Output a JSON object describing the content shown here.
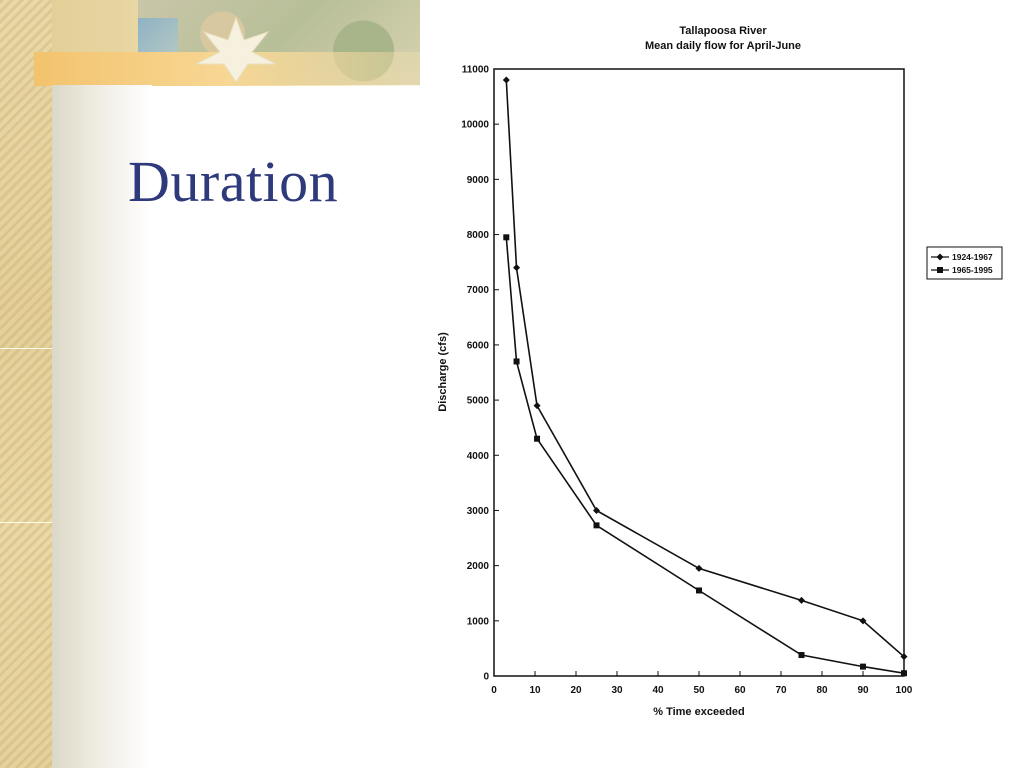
{
  "slide": {
    "title": "Duration"
  },
  "chart_data": {
    "type": "line",
    "title": "Tallapoosa River",
    "subtitle": "Mean daily flow for April-June",
    "xlabel": "% Time exceeded",
    "ylabel": "Discharge (cfs)",
    "xlim": [
      0,
      100
    ],
    "ylim": [
      0,
      11000
    ],
    "xticks": [
      0,
      10,
      20,
      30,
      40,
      50,
      60,
      70,
      80,
      90,
      100
    ],
    "yticks": [
      0,
      1000,
      2000,
      3000,
      4000,
      5000,
      6000,
      7000,
      8000,
      9000,
      10000,
      11000
    ],
    "grid": false,
    "legend_position": "right",
    "series": [
      {
        "name": "1924-1967",
        "marker": "diamond",
        "points": [
          [
            3,
            10800
          ],
          [
            5.5,
            7400
          ],
          [
            10.5,
            4900
          ],
          [
            25,
            3000
          ],
          [
            50,
            1950
          ],
          [
            75,
            1370
          ],
          [
            90,
            1000
          ],
          [
            100,
            350
          ]
        ]
      },
      {
        "name": "1965-1995",
        "marker": "square",
        "points": [
          [
            3,
            7950
          ],
          [
            5.5,
            5700
          ],
          [
            10.5,
            4300
          ],
          [
            25,
            2730
          ],
          [
            50,
            1550
          ],
          [
            75,
            380
          ],
          [
            90,
            170
          ],
          [
            100,
            50
          ]
        ]
      }
    ]
  },
  "colors": {
    "title_text": "#2e3a7c",
    "chart_ink": "#111111"
  }
}
